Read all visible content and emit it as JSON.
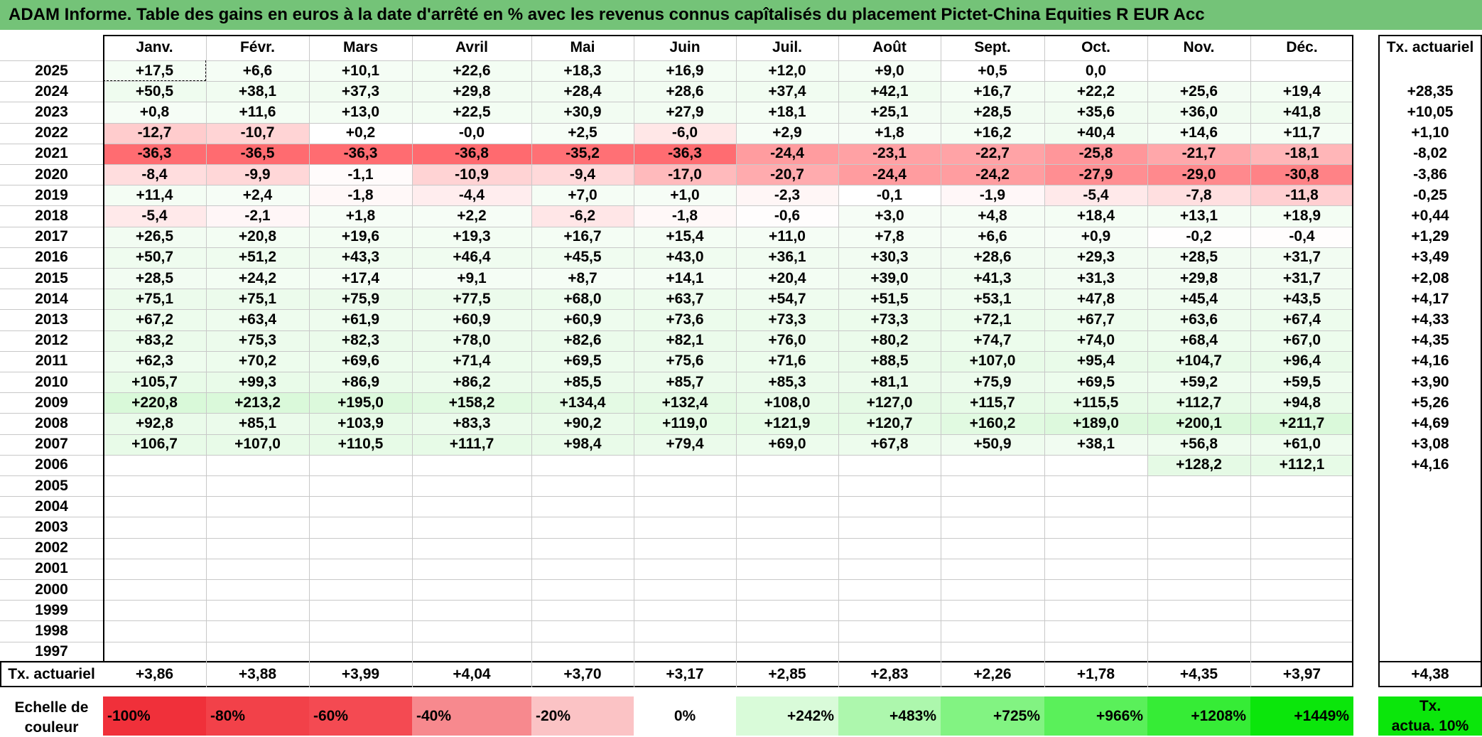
{
  "title": "ADAM Informe. Table des gains en euros à la date d'arrêté en % avec les revenus connus capîtalisés du placement Pictet-China Equities R EUR Acc",
  "months": [
    "Janv.",
    "Févr.",
    "Mars",
    "Avril",
    "Mai",
    "Juin",
    "Juil.",
    "Août",
    "Sept.",
    "Oct.",
    "Nov.",
    "Déc."
  ],
  "tx_header": "Tx. actuariel",
  "rows": [
    {
      "year": "2025",
      "values": [
        "+17,5",
        "+6,6",
        "+10,1",
        "+22,6",
        "+18,3",
        "+16,9",
        "+12,0",
        "+9,0",
        "+0,5",
        "0,0",
        "",
        ""
      ],
      "tx": ""
    },
    {
      "year": "2024",
      "values": [
        "+50,5",
        "+38,1",
        "+37,3",
        "+29,8",
        "+28,4",
        "+28,6",
        "+37,4",
        "+42,1",
        "+16,7",
        "+22,2",
        "+25,6",
        "+19,4"
      ],
      "tx": "+28,35"
    },
    {
      "year": "2023",
      "values": [
        "+0,8",
        "+11,6",
        "+13,0",
        "+22,5",
        "+30,9",
        "+27,9",
        "+18,1",
        "+25,1",
        "+28,5",
        "+35,6",
        "+36,0",
        "+41,8"
      ],
      "tx": "+10,05"
    },
    {
      "year": "2022",
      "values": [
        "-12,7",
        "-10,7",
        "+0,2",
        "-0,0",
        "+2,5",
        "-6,0",
        "+2,9",
        "+1,8",
        "+16,2",
        "+40,4",
        "+14,6",
        "+11,7"
      ],
      "tx": "+1,10"
    },
    {
      "year": "2021",
      "values": [
        "-36,3",
        "-36,5",
        "-36,3",
        "-36,8",
        "-35,2",
        "-36,3",
        "-24,4",
        "-23,1",
        "-22,7",
        "-25,8",
        "-21,7",
        "-18,1"
      ],
      "tx": "-8,02"
    },
    {
      "year": "2020",
      "values": [
        "-8,4",
        "-9,9",
        "-1,1",
        "-10,9",
        "-9,4",
        "-17,0",
        "-20,7",
        "-24,4",
        "-24,2",
        "-27,9",
        "-29,0",
        "-30,8"
      ],
      "tx": "-3,86"
    },
    {
      "year": "2019",
      "values": [
        "+11,4",
        "+2,4",
        "-1,8",
        "-4,4",
        "+7,0",
        "+1,0",
        "-2,3",
        "-0,1",
        "-1,9",
        "-5,4",
        "-7,8",
        "-11,8"
      ],
      "tx": "-0,25"
    },
    {
      "year": "2018",
      "values": [
        "-5,4",
        "-2,1",
        "+1,8",
        "+2,2",
        "-6,2",
        "-1,8",
        "-0,6",
        "+3,0",
        "+4,8",
        "+18,4",
        "+13,1",
        "+18,9"
      ],
      "tx": "+0,44"
    },
    {
      "year": "2017",
      "values": [
        "+26,5",
        "+20,8",
        "+19,6",
        "+19,3",
        "+16,7",
        "+15,4",
        "+11,0",
        "+7,8",
        "+6,6",
        "+0,9",
        "-0,2",
        "-0,4"
      ],
      "tx": "+1,29"
    },
    {
      "year": "2016",
      "values": [
        "+50,7",
        "+51,2",
        "+43,3",
        "+46,4",
        "+45,5",
        "+43,0",
        "+36,1",
        "+30,3",
        "+28,6",
        "+29,3",
        "+28,5",
        "+31,7"
      ],
      "tx": "+3,49"
    },
    {
      "year": "2015",
      "values": [
        "+28,5",
        "+24,2",
        "+17,4",
        "+9,1",
        "+8,7",
        "+14,1",
        "+20,4",
        "+39,0",
        "+41,3",
        "+31,3",
        "+29,8",
        "+31,7"
      ],
      "tx": "+2,08"
    },
    {
      "year": "2014",
      "values": [
        "+75,1",
        "+75,1",
        "+75,9",
        "+77,5",
        "+68,0",
        "+63,7",
        "+54,7",
        "+51,5",
        "+53,1",
        "+47,8",
        "+45,4",
        "+43,5"
      ],
      "tx": "+4,17"
    },
    {
      "year": "2013",
      "values": [
        "+67,2",
        "+63,4",
        "+61,9",
        "+60,9",
        "+60,9",
        "+73,6",
        "+73,3",
        "+73,3",
        "+72,1",
        "+67,7",
        "+63,6",
        "+67,4"
      ],
      "tx": "+4,33"
    },
    {
      "year": "2012",
      "values": [
        "+83,2",
        "+75,3",
        "+82,3",
        "+78,0",
        "+82,6",
        "+82,1",
        "+76,0",
        "+80,2",
        "+74,7",
        "+74,0",
        "+68,4",
        "+67,0"
      ],
      "tx": "+4,35"
    },
    {
      "year": "2011",
      "values": [
        "+62,3",
        "+70,2",
        "+69,6",
        "+71,4",
        "+69,5",
        "+75,6",
        "+71,6",
        "+88,5",
        "+107,0",
        "+95,4",
        "+104,7",
        "+96,4"
      ],
      "tx": "+4,16"
    },
    {
      "year": "2010",
      "values": [
        "+105,7",
        "+99,3",
        "+86,9",
        "+86,2",
        "+85,5",
        "+85,7",
        "+85,3",
        "+81,1",
        "+75,9",
        "+69,5",
        "+59,2",
        "+59,5"
      ],
      "tx": "+3,90"
    },
    {
      "year": "2009",
      "values": [
        "+220,8",
        "+213,2",
        "+195,0",
        "+158,2",
        "+134,4",
        "+132,4",
        "+108,0",
        "+127,0",
        "+115,7",
        "+115,5",
        "+112,7",
        "+94,8"
      ],
      "tx": "+5,26"
    },
    {
      "year": "2008",
      "values": [
        "+92,8",
        "+85,1",
        "+103,9",
        "+83,3",
        "+90,2",
        "+119,0",
        "+121,9",
        "+120,7",
        "+160,2",
        "+189,0",
        "+200,1",
        "+211,7"
      ],
      "tx": "+4,69"
    },
    {
      "year": "2007",
      "values": [
        "+106,7",
        "+107,0",
        "+110,5",
        "+111,7",
        "+98,4",
        "+79,4",
        "+69,0",
        "+67,8",
        "+50,9",
        "+38,1",
        "+56,8",
        "+61,0"
      ],
      "tx": "+3,08"
    },
    {
      "year": "2006",
      "values": [
        "",
        "",
        "",
        "",
        "",
        "",
        "",
        "",
        "",
        "",
        "+128,2",
        "+112,1"
      ],
      "tx": "+4,16"
    },
    {
      "year": "2005",
      "values": [
        "",
        "",
        "",
        "",
        "",
        "",
        "",
        "",
        "",
        "",
        "",
        ""
      ],
      "tx": ""
    },
    {
      "year": "2004",
      "values": [
        "",
        "",
        "",
        "",
        "",
        "",
        "",
        "",
        "",
        "",
        "",
        ""
      ],
      "tx": ""
    },
    {
      "year": "2003",
      "values": [
        "",
        "",
        "",
        "",
        "",
        "",
        "",
        "",
        "",
        "",
        "",
        ""
      ],
      "tx": ""
    },
    {
      "year": "2002",
      "values": [
        "",
        "",
        "",
        "",
        "",
        "",
        "",
        "",
        "",
        "",
        "",
        ""
      ],
      "tx": ""
    },
    {
      "year": "2001",
      "values": [
        "",
        "",
        "",
        "",
        "",
        "",
        "",
        "",
        "",
        "",
        "",
        ""
      ],
      "tx": ""
    },
    {
      "year": "2000",
      "values": [
        "",
        "",
        "",
        "",
        "",
        "",
        "",
        "",
        "",
        "",
        "",
        ""
      ],
      "tx": ""
    },
    {
      "year": "1999",
      "values": [
        "",
        "",
        "",
        "",
        "",
        "",
        "",
        "",
        "",
        "",
        "",
        ""
      ],
      "tx": ""
    },
    {
      "year": "1998",
      "values": [
        "",
        "",
        "",
        "",
        "",
        "",
        "",
        "",
        "",
        "",
        "",
        ""
      ],
      "tx": ""
    },
    {
      "year": "1997",
      "values": [
        "",
        "",
        "",
        "",
        "",
        "",
        "",
        "",
        "",
        "",
        "",
        ""
      ],
      "tx": ""
    }
  ],
  "footer": {
    "label": "Tx. actuariel",
    "values": [
      "+3,86",
      "+3,88",
      "+3,99",
      "+4,04",
      "+3,70",
      "+3,17",
      "+2,85",
      "+2,83",
      "+2,26",
      "+1,78",
      "+4,35",
      "+3,97"
    ],
    "tx": "+4,38"
  },
  "scale": {
    "label_line1": "Echelle de",
    "label_line2": "couleur",
    "steps": [
      {
        "text": "-100%",
        "color": "#f0303a",
        "align": "left"
      },
      {
        "text": "-80%",
        "color": "#f24149",
        "align": "left"
      },
      {
        "text": "-60%",
        "color": "#f44a52",
        "align": "left"
      },
      {
        "text": "-40%",
        "color": "#f7898e",
        "align": "left"
      },
      {
        "text": "-20%",
        "color": "#fbc3c5",
        "align": "left"
      },
      {
        "text": "0%",
        "color": "#ffffff",
        "align": "center"
      },
      {
        "text": "+242%",
        "color": "#d9fbd9",
        "align": "right"
      },
      {
        "text": "+483%",
        "color": "#adf7ad",
        "align": "right"
      },
      {
        "text": "+725%",
        "color": "#82f382",
        "align": "right"
      },
      {
        "text": "+966%",
        "color": "#5af05a",
        "align": "right"
      },
      {
        "text": "+1208%",
        "color": "#36ec36",
        "align": "right"
      },
      {
        "text": "+1449%",
        "color": "#0be60b",
        "align": "right"
      }
    ],
    "tx_line1": "Tx.",
    "tx_line2": "actua. 10%",
    "tx_color": "#0be60b"
  },
  "colors": {
    "title_bg": "#74c378",
    "negative_strong": "#f36b70",
    "positive_light": "#effcef"
  }
}
